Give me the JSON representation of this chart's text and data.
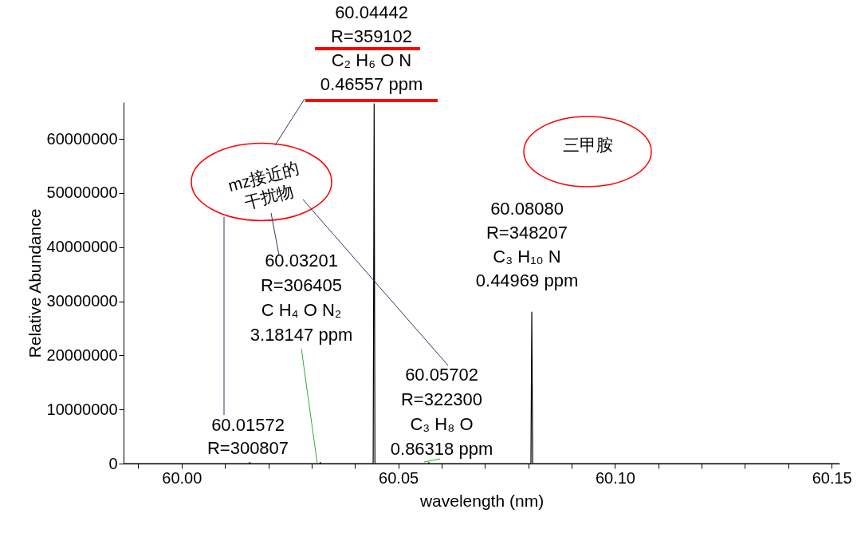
{
  "chart_data": {
    "type": "line",
    "xlabel": "wavelength (nm)",
    "ylabel": "Relative Abundance",
    "legend": false,
    "grid": false,
    "marker": "none",
    "line_style": "solid",
    "xlim": [
      59.9866,
      60.1518
    ],
    "ylim": [
      0,
      66800000
    ],
    "xticks": [
      {
        "value": 59.99,
        "label": null
      },
      {
        "value": 60.0,
        "label": "60.00"
      },
      {
        "value": 60.01,
        "label": null
      },
      {
        "value": 60.02,
        "label": null
      },
      {
        "value": 60.03,
        "label": null
      },
      {
        "value": 60.04,
        "label": null
      },
      {
        "value": 60.05,
        "label": "60.05"
      },
      {
        "value": 60.06,
        "label": null
      },
      {
        "value": 60.07,
        "label": null
      },
      {
        "value": 60.08,
        "label": null
      },
      {
        "value": 60.09,
        "label": null
      },
      {
        "value": 60.1,
        "label": "60.10"
      },
      {
        "value": 60.11,
        "label": null
      },
      {
        "value": 60.12,
        "label": null
      },
      {
        "value": 60.13,
        "label": null
      },
      {
        "value": 60.14,
        "label": null
      },
      {
        "value": 60.15,
        "label": "60.15"
      }
    ],
    "yticks": [
      0,
      10000000,
      20000000,
      30000000,
      40000000,
      50000000,
      60000000
    ],
    "series": [
      {
        "color": "#000000",
        "x": [
          59.9866,
          60.0155,
          60.01572,
          60.0159,
          60.032,
          60.03201,
          60.0322,
          60.0442,
          60.04442,
          60.0446,
          60.0569,
          60.05702,
          60.0572,
          60.0806,
          60.0808,
          60.081,
          60.1518
        ],
        "values": [
          0,
          0,
          200000,
          0,
          0,
          200000,
          0,
          0,
          66500000,
          0,
          0,
          200000,
          0,
          0,
          28000000,
          0,
          0
        ]
      }
    ],
    "annotations": [
      "60.04442\nR=359102\nC₂ H₆ O N\n0.46557 ppm",
      "60.08080\nR=348207\nC₃ H₁₀ N\n0.44969 ppm",
      {
        "text": "60.03201\nR=306405\nC H₄ O N₂\n3.18147 ppm",
        "x": 60.0313,
        "y": 0
      },
      "60.05702\nR=322300\nC₃ H₈ O\n0.86318 ppm",
      "60.01572\nR=300807",
      "mz接近的\n干扰物",
      "三甲胺"
    ]
  }
}
